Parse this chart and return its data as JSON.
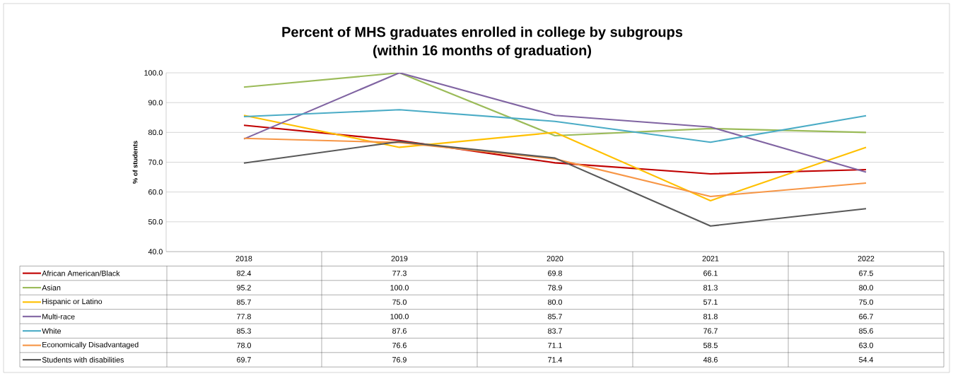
{
  "chart_data": {
    "type": "line",
    "title": "Percent of MHS graduates enrolled in college by subgroups",
    "subtitle": "(within 16 months of graduation)",
    "ylabel": "% of students",
    "categories": [
      "2018",
      "2019",
      "2020",
      "2021",
      "2022"
    ],
    "series": [
      {
        "name": "African American/Black",
        "color": "#c00000",
        "values": [
          82.4,
          77.3,
          69.8,
          66.1,
          67.5
        ],
        "value_labels": [
          "82.4",
          "77.3",
          "69.8",
          "66.1",
          "67.5"
        ]
      },
      {
        "name": "Asian",
        "color": "#9bbb59",
        "values": [
          95.2,
          100.0,
          78.9,
          81.3,
          80.0
        ],
        "value_labels": [
          "95.2",
          "100.0",
          "78.9",
          "81.3",
          "80.0"
        ]
      },
      {
        "name": "Hispanic or Latino",
        "color": "#ffc000",
        "values": [
          85.7,
          75.0,
          80.0,
          57.1,
          75.0
        ],
        "value_labels": [
          "85.7",
          "75.0",
          "80.0",
          "57.1",
          "75.0"
        ]
      },
      {
        "name": "Multi-race",
        "color": "#8064a2",
        "values": [
          77.8,
          100.0,
          85.7,
          81.8,
          66.7
        ],
        "value_labels": [
          "77.8",
          "100.0",
          "85.7",
          "81.8",
          "66.7"
        ]
      },
      {
        "name": "White",
        "color": "#4bacc6",
        "values": [
          85.3,
          87.6,
          83.7,
          76.7,
          85.6
        ],
        "value_labels": [
          "85.3",
          "87.6",
          "83.7",
          "76.7",
          "85.6"
        ]
      },
      {
        "name": "Economically Disadvantaged",
        "color": "#f79646",
        "values": [
          78.0,
          76.6,
          71.1,
          58.5,
          63.0
        ],
        "value_labels": [
          "78.0",
          "76.6",
          "71.1",
          "58.5",
          "63.0"
        ]
      },
      {
        "name": "Students with disabilities",
        "color": "#595959",
        "values": [
          69.7,
          76.9,
          71.4,
          48.6,
          54.4
        ],
        "value_labels": [
          "69.7",
          "76.9",
          "71.4",
          "48.6",
          "54.4"
        ]
      }
    ],
    "ylim": [
      40,
      100
    ],
    "yticks": [
      {
        "value": 40,
        "label": "40.0"
      },
      {
        "value": 50,
        "label": "50.0"
      },
      {
        "value": 60,
        "label": "60.0"
      },
      {
        "value": 70,
        "label": "70.0"
      },
      {
        "value": 80,
        "label": "80.0"
      },
      {
        "value": 90,
        "label": "90.0"
      },
      {
        "value": 100,
        "label": "100.0"
      }
    ],
    "grid": "y",
    "legend": "bottom",
    "marker": "none",
    "line_style": "solid"
  }
}
